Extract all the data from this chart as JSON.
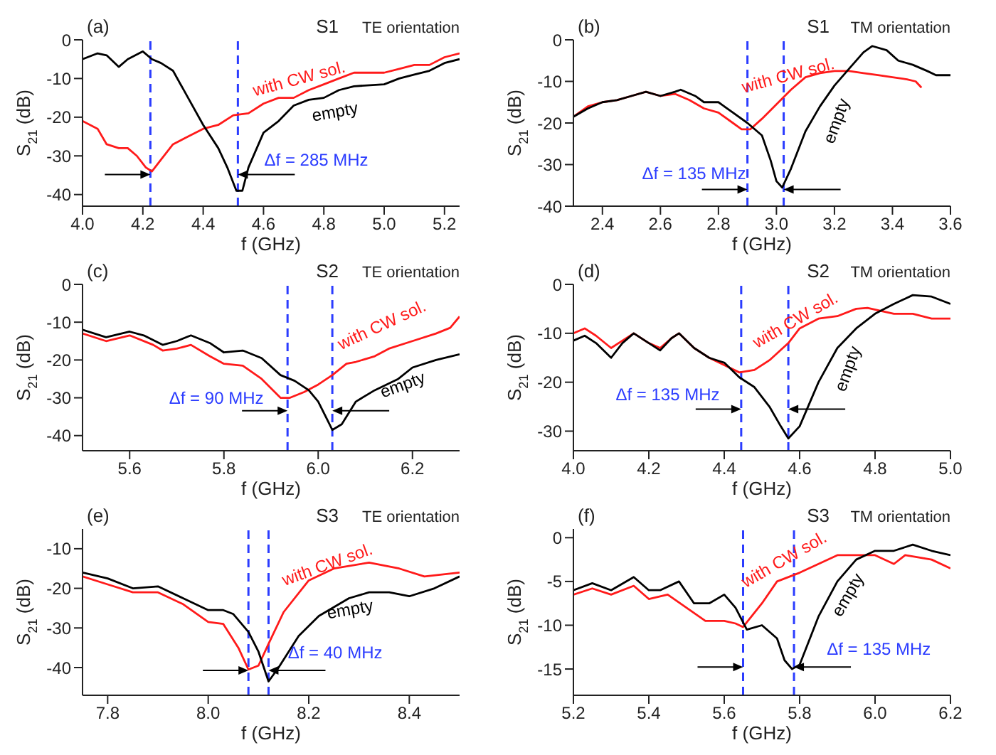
{
  "chart_data": [
    {
      "type": "line",
      "xlabel": "f (GHz)",
      "ylabel": "S$_{21}$ (dB)",
      "annotations": [
        "(a)",
        "S1",
        "TE orientation",
        "Δf = 285 MHz"
      ],
      "xlim": [
        4.0,
        5.25
      ],
      "xticks": [
        {
          "value": 4,
          "label": "4.0"
        },
        4.2,
        4.4,
        4.6,
        4.8,
        {
          "value": 5,
          "label": "5.0"
        },
        5.2
      ],
      "ylim": [
        -43,
        0
      ],
      "yticks": [
        -40,
        -30,
        -20,
        -10,
        0
      ],
      "grid": false,
      "legend": false,
      "marker": "none",
      "line_style": "solid",
      "ref_lines": [
        {
          "axis": "x",
          "value": 4.225,
          "color": "#2b3cff",
          "line_style": "dashed"
        },
        {
          "axis": "x",
          "value": 4.515,
          "color": "#2b3cff",
          "line_style": "dashed"
        }
      ],
      "series": [
        {
          "name": "with CW sol.",
          "color": "#ff1a1a",
          "x": [
            4.0,
            4.05,
            4.08,
            4.12,
            4.15,
            4.18,
            4.21,
            4.23,
            4.26,
            4.3,
            4.35,
            4.4,
            4.45,
            4.5,
            4.55,
            4.6,
            4.65,
            4.7,
            4.75,
            4.8,
            4.85,
            4.9,
            5.0,
            5.05,
            5.1,
            5.15,
            5.2,
            5.25
          ],
          "values": [
            -21,
            -23,
            -27,
            -28,
            -28,
            -30,
            -33,
            -34,
            -31,
            -27,
            -25,
            -23,
            -22,
            -19.5,
            -19,
            -16.5,
            -15,
            -15,
            -13,
            -11.5,
            -10,
            -8.5,
            -8.5,
            -7.5,
            -6.5,
            -6.5,
            -4.5,
            -3.5
          ]
        },
        {
          "name": "empty",
          "color": "#000000",
          "x": [
            4.0,
            4.05,
            4.08,
            4.12,
            4.15,
            4.2,
            4.23,
            4.26,
            4.3,
            4.35,
            4.4,
            4.45,
            4.48,
            4.51,
            4.53,
            4.55,
            4.6,
            4.65,
            4.7,
            4.75,
            4.8,
            4.85,
            4.9,
            5.0,
            5.05,
            5.1,
            5.15,
            5.2,
            5.25
          ],
          "values": [
            -5,
            -3.5,
            -4,
            -7,
            -5,
            -3,
            -5,
            -6,
            -8,
            -15,
            -22,
            -28,
            -33,
            -39,
            -39,
            -33,
            -24,
            -21,
            -17,
            -15.5,
            -15,
            -13,
            -12,
            -11.5,
            -10,
            -9,
            -8,
            -6,
            -5
          ]
        }
      ]
    },
    {
      "type": "line",
      "xlabel": "f (GHz)",
      "ylabel": "S$_{21}$ (dB)",
      "annotations": [
        "(b)",
        "S1",
        "TM orientation",
        "Δf = 135 MHz"
      ],
      "xlim": [
        2.3,
        3.6
      ],
      "xticks": [
        2.4,
        2.6,
        2.8,
        {
          "value": 3,
          "label": "3.0"
        },
        3.2,
        3.4,
        3.6
      ],
      "ylim": [
        -40,
        0
      ],
      "yticks": [
        -40,
        -30,
        -20,
        -10,
        0
      ],
      "grid": false,
      "legend": false,
      "marker": "none",
      "line_style": "solid",
      "ref_lines": [
        {
          "axis": "x",
          "value": 2.9,
          "color": "#2b3cff",
          "line_style": "dashed"
        },
        {
          "axis": "x",
          "value": 3.025,
          "color": "#2b3cff",
          "line_style": "dashed"
        }
      ],
      "series": [
        {
          "name": "with CW sol.",
          "color": "#ff1a1a",
          "x": [
            2.3,
            2.35,
            2.4,
            2.45,
            2.5,
            2.55,
            2.6,
            2.65,
            2.7,
            2.75,
            2.8,
            2.85,
            2.88,
            2.91,
            2.95,
            3.0,
            3.05,
            3.1,
            3.15,
            3.2,
            3.25,
            3.3,
            3.35,
            3.4,
            3.45,
            3.48,
            3.5
          ],
          "values": [
            -18.5,
            -16,
            -15,
            -14.5,
            -13.5,
            -12.5,
            -13.5,
            -13,
            -14.5,
            -16.5,
            -17.5,
            -20,
            -21.5,
            -21.5,
            -19,
            -15.5,
            -12,
            -9,
            -8,
            -7.5,
            -7.5,
            -8,
            -8.5,
            -9,
            -9.5,
            -10,
            -11.5
          ]
        },
        {
          "name": "empty",
          "color": "#000000",
          "x": [
            2.3,
            2.35,
            2.4,
            2.45,
            2.5,
            2.55,
            2.6,
            2.65,
            2.67,
            2.72,
            2.75,
            2.8,
            2.85,
            2.9,
            2.95,
            2.98,
            3.0,
            3.02,
            3.05,
            3.1,
            3.15,
            3.2,
            3.25,
            3.3,
            3.33,
            3.38,
            3.42,
            3.47,
            3.52,
            3.55,
            3.6
          ],
          "values": [
            -18.5,
            -16.5,
            -15,
            -14.5,
            -13.5,
            -12.5,
            -13.5,
            -12.5,
            -12,
            -13.5,
            -15,
            -15,
            -17.5,
            -20,
            -23,
            -29,
            -34,
            -35.5,
            -31,
            -22,
            -16,
            -11,
            -7,
            -3,
            -1.5,
            -2.5,
            -5,
            -6,
            -7.5,
            -8.5,
            -8.5
          ]
        }
      ]
    },
    {
      "type": "line",
      "xlabel": "f (GHz)",
      "ylabel": "S$_{21}$ (dB)",
      "annotations": [
        "(c)",
        "S2",
        "TE orientation",
        "Δf = 90 MHz"
      ],
      "xlim": [
        5.5,
        6.3
      ],
      "xticks": [
        5.6,
        5.8,
        {
          "value": 6,
          "label": "6.0"
        },
        6.2
      ],
      "ylim": [
        -44,
        0
      ],
      "yticks": [
        -40,
        -30,
        -20,
        -10,
        0
      ],
      "grid": false,
      "legend": false,
      "marker": "none",
      "line_style": "solid",
      "ref_lines": [
        {
          "axis": "x",
          "value": 5.935,
          "color": "#2b3cff",
          "line_style": "dashed"
        },
        {
          "axis": "x",
          "value": 6.03,
          "color": "#2b3cff",
          "line_style": "dashed"
        }
      ],
      "series": [
        {
          "name": "with CW sol.",
          "color": "#ff1a1a",
          "x": [
            5.5,
            5.55,
            5.6,
            5.65,
            5.67,
            5.7,
            5.73,
            5.77,
            5.8,
            5.84,
            5.88,
            5.92,
            5.94,
            5.97,
            6.0,
            6.03,
            6.06,
            6.08,
            6.12,
            6.15,
            6.2,
            6.25,
            6.28,
            6.3
          ],
          "values": [
            -13,
            -15,
            -13.5,
            -16,
            -17.5,
            -17,
            -16,
            -19,
            -21,
            -21.5,
            -25,
            -30,
            -30,
            -28.5,
            -26.5,
            -24,
            -21,
            -20.5,
            -19,
            -17,
            -15,
            -13,
            -11.5,
            -8.5
          ]
        },
        {
          "name": "empty",
          "color": "#000000",
          "x": [
            5.5,
            5.55,
            5.6,
            5.63,
            5.67,
            5.7,
            5.73,
            5.77,
            5.8,
            5.84,
            5.88,
            5.92,
            5.95,
            5.98,
            6.0,
            6.02,
            6.03,
            6.05,
            6.08,
            6.12,
            6.17,
            6.2,
            6.25,
            6.3
          ],
          "values": [
            -12,
            -14,
            -12.5,
            -13.5,
            -16,
            -15,
            -13.5,
            -15.5,
            -18,
            -17.5,
            -19.5,
            -24,
            -25.5,
            -28,
            -31,
            -36,
            -38.5,
            -37,
            -31,
            -28,
            -25,
            -22,
            -20,
            -18.5
          ]
        }
      ]
    },
    {
      "type": "line",
      "xlabel": "f (GHz)",
      "ylabel": "S$_{21}$ (dB)",
      "annotations": [
        "(d)",
        "S2",
        "TM orientation",
        "Δf = 135 MHz"
      ],
      "xlim": [
        4.0,
        5.0
      ],
      "xticks": [
        {
          "value": 4,
          "label": "4.0"
        },
        4.2,
        4.4,
        4.6,
        4.8,
        {
          "value": 5,
          "label": "5.0"
        }
      ],
      "ylim": [
        -34,
        0
      ],
      "yticks": [
        -30,
        -20,
        -10,
        0
      ],
      "grid": false,
      "legend": false,
      "marker": "none",
      "line_style": "solid",
      "ref_lines": [
        {
          "axis": "x",
          "value": 4.445,
          "color": "#2b3cff",
          "line_style": "dashed"
        },
        {
          "axis": "x",
          "value": 4.57,
          "color": "#2b3cff",
          "line_style": "dashed"
        }
      ],
      "series": [
        {
          "name": "with CW sol.",
          "color": "#ff1a1a",
          "x": [
            4.0,
            4.03,
            4.06,
            4.1,
            4.13,
            4.16,
            4.2,
            4.23,
            4.26,
            4.28,
            4.32,
            4.36,
            4.4,
            4.44,
            4.48,
            4.52,
            4.57,
            4.6,
            4.65,
            4.7,
            4.75,
            4.78,
            4.82,
            4.85,
            4.9,
            4.95,
            5.0
          ],
          "values": [
            -10,
            -9,
            -10.5,
            -13,
            -11.5,
            -10,
            -12,
            -13,
            -11,
            -10,
            -13,
            -15,
            -16.5,
            -18,
            -17.5,
            -15.5,
            -12,
            -9,
            -7,
            -6.5,
            -5,
            -4.8,
            -5.5,
            -6,
            -6,
            -7,
            -7
          ]
        },
        {
          "name": "empty",
          "color": "#000000",
          "x": [
            4.0,
            4.03,
            4.06,
            4.1,
            4.13,
            4.16,
            4.2,
            4.23,
            4.26,
            4.28,
            4.32,
            4.36,
            4.4,
            4.44,
            4.48,
            4.52,
            4.55,
            4.57,
            4.6,
            4.65,
            4.7,
            4.75,
            4.8,
            4.85,
            4.9,
            4.95,
            5.0
          ],
          "values": [
            -11.5,
            -10.5,
            -12,
            -15,
            -12,
            -10,
            -12,
            -13.5,
            -11,
            -10,
            -13,
            -15,
            -16,
            -19,
            -21,
            -25,
            -29,
            -31.5,
            -29,
            -20,
            -13,
            -9,
            -6,
            -4,
            -2.2,
            -2.5,
            -4
          ]
        }
      ]
    },
    {
      "type": "line",
      "xlabel": "f (GHz)",
      "ylabel": "S$_{21}$ (dB)",
      "annotations": [
        "(e)",
        "S3",
        "TE orientation",
        "Δf = 40 MHz"
      ],
      "xlim": [
        7.75,
        8.5
      ],
      "xticks": [
        7.8,
        {
          "value": 8,
          "label": "8.0"
        },
        8.2,
        8.4
      ],
      "ylim": [
        -47,
        -5
      ],
      "yticks": [
        -40,
        -30,
        -20,
        -10
      ],
      "grid": false,
      "legend": false,
      "marker": "none",
      "line_style": "solid",
      "ref_lines": [
        {
          "axis": "x",
          "value": 8.08,
          "color": "#2b3cff",
          "line_style": "dashed"
        },
        {
          "axis": "x",
          "value": 8.12,
          "color": "#2b3cff",
          "line_style": "dashed"
        }
      ],
      "series": [
        {
          "name": "with CW sol.",
          "color": "#ff1a1a",
          "x": [
            7.75,
            7.8,
            7.85,
            7.9,
            7.95,
            8.0,
            8.03,
            8.06,
            8.08,
            8.1,
            8.12,
            8.15,
            8.2,
            8.25,
            8.32,
            8.38,
            8.43,
            8.5
          ],
          "values": [
            -17,
            -19,
            -21,
            -21,
            -24,
            -28.5,
            -29,
            -35,
            -40.5,
            -39.5,
            -34,
            -26,
            -18,
            -15,
            -13.5,
            -15,
            -17,
            -16
          ]
        },
        {
          "name": "empty",
          "color": "#000000",
          "x": [
            7.75,
            7.8,
            7.85,
            7.9,
            7.95,
            8.0,
            8.03,
            8.05,
            8.08,
            8.1,
            8.12,
            8.14,
            8.18,
            8.22,
            8.28,
            8.32,
            8.36,
            8.4,
            8.45,
            8.5
          ],
          "values": [
            -16,
            -17.5,
            -20,
            -19.5,
            -22.5,
            -25.5,
            -25.5,
            -26.5,
            -31,
            -36,
            -43.5,
            -40,
            -32,
            -27,
            -22.5,
            -21,
            -21,
            -22,
            -20,
            -17
          ]
        }
      ]
    },
    {
      "type": "line",
      "xlabel": "f (GHz)",
      "ylabel": "S$_{21}$ (dB)",
      "annotations": [
        "(f)",
        "S3",
        "TM orientation",
        "Δf = 135 MHz"
      ],
      "xlim": [
        5.2,
        6.2
      ],
      "xticks": [
        5.2,
        5.4,
        5.6,
        5.8,
        {
          "value": 6,
          "label": "6.0"
        },
        6.2
      ],
      "ylim": [
        -18,
        1
      ],
      "yticks": [
        -15,
        -10,
        -5,
        0
      ],
      "grid": false,
      "legend": false,
      "marker": "none",
      "line_style": "solid",
      "ref_lines": [
        {
          "axis": "x",
          "value": 5.65,
          "color": "#2b3cff",
          "line_style": "dashed"
        },
        {
          "axis": "x",
          "value": 5.785,
          "color": "#2b3cff",
          "line_style": "dashed"
        }
      ],
      "series": [
        {
          "name": "with CW sol.",
          "color": "#ff1a1a",
          "x": [
            5.2,
            5.25,
            5.3,
            5.36,
            5.4,
            5.45,
            5.5,
            5.55,
            5.6,
            5.63,
            5.65,
            5.7,
            5.74,
            5.8,
            5.85,
            5.9,
            6.0,
            6.05,
            6.08,
            6.15,
            6.2
          ],
          "values": [
            -6.5,
            -5.8,
            -6.5,
            -5.5,
            -7,
            -6.5,
            -8,
            -9.5,
            -9.5,
            -9.8,
            -10.2,
            -7.5,
            -5,
            -4,
            -3,
            -2,
            -2,
            -3,
            -2,
            -2.5,
            -3.5
          ]
        },
        {
          "name": "empty",
          "color": "#000000",
          "x": [
            5.2,
            5.25,
            5.3,
            5.36,
            5.4,
            5.43,
            5.48,
            5.52,
            5.56,
            5.6,
            5.63,
            5.66,
            5.7,
            5.74,
            5.76,
            5.78,
            5.8,
            5.85,
            5.9,
            5.95,
            6.0,
            6.05,
            6.1,
            6.15,
            6.2
          ],
          "values": [
            -6,
            -5.2,
            -6,
            -4.5,
            -6,
            -6,
            -5,
            -7.5,
            -7.5,
            -6.5,
            -8,
            -10.5,
            -10,
            -11.5,
            -14,
            -15,
            -14.5,
            -9,
            -5,
            -2.5,
            -1.5,
            -1.5,
            -0.8,
            -1.5,
            -2
          ]
        }
      ]
    }
  ]
}
